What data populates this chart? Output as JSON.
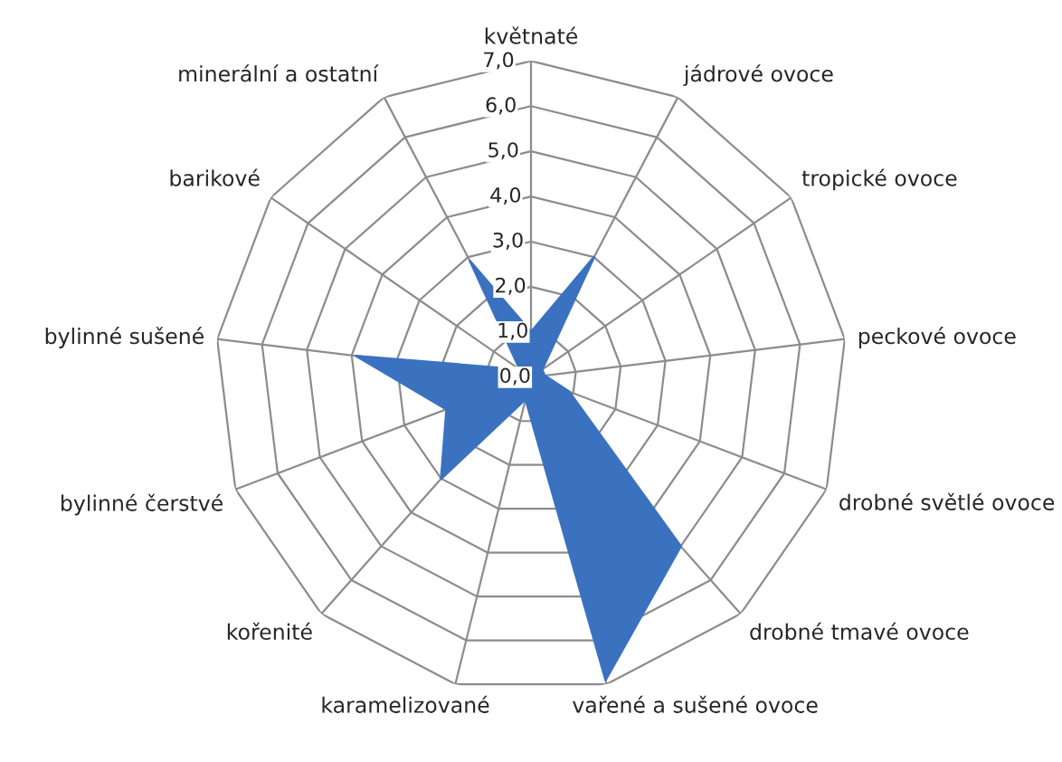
{
  "chart_data": {
    "type": "radar",
    "categories": [
      "květnaté",
      "jádrové ovoce",
      "tropické ovoce",
      "peckové ovoce",
      "drobné světlé ovoce",
      "drobné tmavé ovoce",
      "vařené a sušené ovoce",
      "karamelizované",
      "kořenité",
      "bylinné čerstvé",
      "bylinné sušené",
      "barikové",
      "minerální a ostatní"
    ],
    "series": [
      {
        "color": "#3a72c0",
        "values": [
          1.0,
          3.0,
          0.3,
          0.3,
          0.9,
          5.0,
          6.9,
          0.5,
          3.0,
          2.0,
          3.9,
          0.3,
          2.9
        ]
      }
    ],
    "ylim": [
      0,
      7
    ],
    "yticks": [
      {
        "value": 0,
        "label": "0,0"
      },
      {
        "value": 1,
        "label": "1,0"
      },
      {
        "value": 2,
        "label": "2,0"
      },
      {
        "value": 3,
        "label": "3,0"
      },
      {
        "value": 4,
        "label": "4,0"
      },
      {
        "value": 5,
        "label": "5,0"
      },
      {
        "value": 6,
        "label": "6,0"
      },
      {
        "value": 7,
        "label": "7,0"
      }
    ],
    "grid": true
  }
}
